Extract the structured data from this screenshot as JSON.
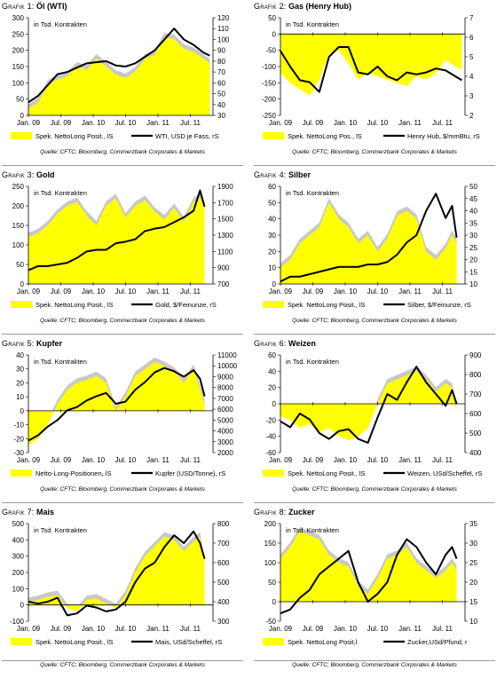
{
  "colors": {
    "position_fill": "#ffff00",
    "position_band": "#c8c8c8",
    "price_line": "#000000",
    "zero_line": "#000000"
  },
  "chart_data": [
    {
      "type": "area",
      "grafik_label": "Grafik 1:",
      "commodity": "Öl (WTI)",
      "note": "in Tsd. Kontrakten",
      "x_ticks": [
        "Jan. 09",
        "Jul. 09",
        "Jan. 10",
        "Jul. 10",
        "Jan. 11",
        "Jul. 11"
      ],
      "left_axis": {
        "ticks": [
          0,
          50,
          100,
          150,
          200,
          250,
          300
        ],
        "range": [
          0,
          300
        ]
      },
      "right_axis": {
        "ticks": [
          30,
          40,
          50,
          60,
          70,
          80,
          90,
          100,
          110,
          120
        ],
        "range": [
          30,
          120
        ]
      },
      "x": [
        2009.0,
        2009.15,
        2009.3,
        2009.45,
        2009.6,
        2009.75,
        2009.9,
        2010.05,
        2010.2,
        2010.35,
        2010.5,
        2010.65,
        2010.8,
        2010.95,
        2011.1,
        2011.25,
        2011.4,
        2011.55,
        2011.7,
        2011.8
      ],
      "series": [
        {
          "name": "Spek. NettoLong Posit., lS",
          "axis": "left",
          "values": [
            20,
            40,
            95,
            110,
            120,
            150,
            140,
            175,
            150,
            125,
            115,
            135,
            175,
            185,
            240,
            235,
            205,
            195,
            175,
            160
          ]
        },
        {
          "name": "WTI, USD je Fass, rS",
          "axis": "right",
          "values": [
            42,
            48,
            58,
            68,
            70,
            74,
            78,
            79,
            80,
            76,
            75,
            78,
            84,
            90,
            100,
            110,
            100,
            95,
            88,
            85
          ]
        }
      ],
      "legend": [
        "Spek. NettoLong Posit., lS",
        "WTI, USD je Fass, rS"
      ],
      "source": "Quelle: CFTC; Bloomberg, Commerzbank Corporates & Markets"
    },
    {
      "type": "area",
      "grafik_label": "Grafik 2:",
      "commodity": "Gas (Henry Hub)",
      "note": "in Tsd. Kontrakten",
      "x_ticks": [
        "Jan. 09",
        "Jul. 09",
        "Jan. 10",
        "Jul. 10",
        "Jan. 11",
        "Jul. 11"
      ],
      "left_axis": {
        "ticks": [
          -250,
          -200,
          -150,
          -100,
          -50,
          0,
          50
        ],
        "range": [
          -250,
          50
        ]
      },
      "right_axis": {
        "ticks": [
          2,
          3,
          4,
          5,
          6,
          7
        ],
        "range": [
          2,
          7
        ]
      },
      "x": [
        2009.0,
        2009.15,
        2009.3,
        2009.45,
        2009.6,
        2009.75,
        2009.9,
        2010.05,
        2010.2,
        2010.35,
        2010.5,
        2010.65,
        2010.8,
        2010.95,
        2011.1,
        2011.25,
        2011.4,
        2011.55,
        2011.7,
        2011.8
      ],
      "series": [
        {
          "name": "Spek. NettoLong Pos., lS",
          "axis": "left",
          "values": [
            -120,
            -150,
            -170,
            -190,
            -140,
            -60,
            -50,
            -90,
            -140,
            -120,
            -130,
            -140,
            -150,
            -160,
            -130,
            -140,
            -120,
            -80,
            -100,
            -110
          ]
        },
        {
          "name": "Henry Hub, $/mmBtu, rS",
          "axis": "right",
          "values": [
            5.3,
            4.5,
            3.8,
            3.7,
            3.2,
            5.0,
            5.5,
            5.5,
            4.2,
            4.1,
            4.5,
            4.0,
            3.8,
            4.2,
            4.1,
            4.2,
            4.4,
            4.3,
            4.0,
            3.8
          ]
        }
      ],
      "legend": [
        "Spek. NettoLong Pos., lS",
        "Henry Hub, $/mmBtu, rS"
      ],
      "source": "Quelle: CFTC; Bloomberg, Commerzbank Corporates & Markets"
    },
    {
      "type": "area",
      "grafik_label": "Grafik 3:",
      "commodity": "Gold",
      "note": "in Tsd. Kontrakten",
      "x_ticks": [
        "Jan. 09",
        "Jul. 09",
        "Jan. 10",
        "Jul. 10",
        "Jan. 11",
        "Jul. 11"
      ],
      "left_axis": {
        "ticks": [
          0,
          50,
          100,
          150,
          200,
          250
        ],
        "range": [
          0,
          250
        ]
      },
      "right_axis": {
        "ticks": [
          700,
          900,
          1100,
          1300,
          1500,
          1700,
          1900
        ],
        "range": [
          700,
          1900
        ]
      },
      "x": [
        2009.0,
        2009.15,
        2009.3,
        2009.45,
        2009.6,
        2009.75,
        2009.9,
        2010.05,
        2010.2,
        2010.35,
        2010.5,
        2010.65,
        2010.8,
        2010.95,
        2011.1,
        2011.25,
        2011.4,
        2011.55,
        2011.65,
        2011.72
      ],
      "series": [
        {
          "name": "Spek. NettoLong Posit., lS",
          "axis": "left",
          "values": [
            120,
            130,
            150,
            180,
            200,
            210,
            175,
            150,
            200,
            220,
            170,
            200,
            215,
            185,
            165,
            195,
            160,
            210,
            220,
            195
          ]
        },
        {
          "name": "Gold, $/Feinunze, rS",
          "axis": "right",
          "values": [
            870,
            920,
            920,
            940,
            960,
            1020,
            1100,
            1120,
            1120,
            1200,
            1220,
            1250,
            1350,
            1380,
            1400,
            1460,
            1520,
            1600,
            1850,
            1650
          ]
        }
      ],
      "legend": [
        "Spek. NettoLong Posit., lS",
        "Gold, $/Feinunze, rS"
      ],
      "source": "Quelle: CFTC; Bloomberg, Commerzbank Corporates & Markets"
    },
    {
      "type": "area",
      "grafik_label": "Grafik 4:",
      "commodity": "Silber",
      "note": "in Tsd. Kontrakten",
      "x_ticks": [
        "Jan. 09",
        "Jul. 09",
        "Jan. 10",
        "Jul. 10",
        "Jan. 11",
        "Jul. 11"
      ],
      "left_axis": {
        "ticks": [
          0,
          10,
          20,
          30,
          40,
          50,
          60
        ],
        "range": [
          0,
          60
        ]
      },
      "right_axis": {
        "ticks": [
          10,
          15,
          20,
          25,
          30,
          35,
          40,
          45,
          50
        ],
        "range": [
          10,
          50
        ]
      },
      "x": [
        2009.0,
        2009.15,
        2009.3,
        2009.45,
        2009.6,
        2009.75,
        2009.9,
        2010.05,
        2010.2,
        2010.35,
        2010.5,
        2010.65,
        2010.8,
        2010.95,
        2011.1,
        2011.25,
        2011.4,
        2011.55,
        2011.65,
        2011.72
      ],
      "series": [
        {
          "name": "Spek. NettoLong Posit., lS",
          "axis": "left",
          "values": [
            10,
            15,
            25,
            30,
            35,
            50,
            40,
            35,
            25,
            30,
            20,
            28,
            42,
            45,
            40,
            20,
            15,
            22,
            30,
            25
          ]
        },
        {
          "name": "Silber, $/Feinunze, rS",
          "axis": "right",
          "values": [
            11,
            13,
            13,
            14,
            15,
            16,
            17,
            17,
            17,
            18,
            18,
            19,
            22,
            27,
            30,
            40,
            47,
            37,
            42,
            29
          ]
        }
      ],
      "legend": [
        "Spek. NettoLong Posit., lS",
        "Silber, $/Feinunze, rS"
      ],
      "source": "Quelle: CFTC; Bloomberg, Commerzbank Corporates & Markets"
    },
    {
      "type": "area",
      "grafik_label": "Grafik 5:",
      "commodity": "Kupfer",
      "note": "in Tsd. Kontrakten",
      "x_ticks": [
        "Jan. 09",
        "Jul. 09",
        "Jan. 10",
        "Jul. 10",
        "Jan. 11",
        "Jul. 11"
      ],
      "left_axis": {
        "ticks": [
          -30,
          -20,
          -10,
          0,
          10,
          20,
          30,
          40
        ],
        "range": [
          -30,
          40
        ]
      },
      "right_axis": {
        "ticks": [
          2000,
          3000,
          4000,
          5000,
          6000,
          7000,
          8000,
          9000,
          10000,
          11000
        ],
        "range": [
          2000,
          11000
        ]
      },
      "x": [
        2009.0,
        2009.15,
        2009.3,
        2009.45,
        2009.6,
        2009.75,
        2009.9,
        2010.05,
        2010.2,
        2010.35,
        2010.5,
        2010.65,
        2010.8,
        2010.95,
        2011.1,
        2011.25,
        2011.4,
        2011.55,
        2011.65,
        2011.72
      ],
      "series": [
        {
          "name": "Netto-Long-Positionen, lS",
          "axis": "left",
          "values": [
            -25,
            -20,
            -10,
            5,
            15,
            20,
            22,
            25,
            20,
            0,
            10,
            25,
            30,
            35,
            32,
            28,
            20,
            30,
            15,
            5
          ]
        },
        {
          "name": "Kupfer (USD/Tonne), rS",
          "axis": "right",
          "values": [
            3100,
            3600,
            4400,
            5000,
            5900,
            6200,
            6800,
            7200,
            7500,
            6500,
            6700,
            7800,
            8500,
            9400,
            9800,
            9500,
            9000,
            9600,
            8800,
            7200
          ]
        }
      ],
      "legend": [
        "Netto-Long-Positionen, lS",
        "Kupfer (USD/Tonne), rS"
      ],
      "source": "Quelle: CFTC; Bloomberg, Commerzbank Corporates & Markets"
    },
    {
      "type": "area",
      "grafik_label": "Grafik 6:",
      "commodity": "Weizen",
      "note": "in Tsd. Kontrakten",
      "x_ticks": [
        "Jan. 09",
        "Jul. 09",
        "Jan. 10",
        "Jul. 10",
        "Jan. 11",
        "Jul. 11"
      ],
      "left_axis": {
        "ticks": [
          -60,
          -40,
          -20,
          0,
          20,
          40,
          60
        ],
        "range": [
          -60,
          60
        ]
      },
      "right_axis": {
        "ticks": [
          400,
          500,
          600,
          700,
          800,
          900
        ],
        "range": [
          400,
          900
        ]
      },
      "x": [
        2009.0,
        2009.15,
        2009.3,
        2009.45,
        2009.6,
        2009.75,
        2009.9,
        2010.05,
        2010.2,
        2010.35,
        2010.5,
        2010.65,
        2010.8,
        2010.95,
        2011.1,
        2011.25,
        2011.4,
        2011.55,
        2011.65,
        2011.72
      ],
      "series": [
        {
          "name": "Spek. NettoLong Posit., lS",
          "axis": "left",
          "values": [
            -15,
            -20,
            -30,
            -25,
            -35,
            -30,
            -40,
            -45,
            -40,
            -30,
            0,
            25,
            30,
            35,
            40,
            30,
            15,
            25,
            20,
            -10
          ]
        },
        {
          "name": "Weizen, USd/Scheffel, rS",
          "axis": "right",
          "values": [
            560,
            530,
            600,
            570,
            500,
            470,
            510,
            520,
            470,
            450,
            580,
            700,
            670,
            760,
            840,
            760,
            700,
            640,
            720,
            650
          ]
        }
      ],
      "legend": [
        "Spek. NettoLong Posit., lS",
        "Weizen, USd/Scheffel, rS"
      ],
      "source": "Quelle: CFTC; Bloomberg, Commerzbank Corporates & Markets"
    },
    {
      "type": "area",
      "grafik_label": "Grafik 7:",
      "commodity": "Mais",
      "note": "in Tsd. Kontrakten",
      "x_ticks": [
        "Jan. 09",
        "Jul. 09",
        "Jan. 10",
        "Jul. 10",
        "Jan. 11",
        "Jul. 11"
      ],
      "left_axis": {
        "ticks": [
          -100,
          0,
          100,
          200,
          300,
          400,
          500
        ],
        "range": [
          -100,
          500
        ]
      },
      "right_axis": {
        "ticks": [
          300,
          400,
          500,
          600,
          700,
          800
        ],
        "range": [
          300,
          800
        ]
      },
      "x": [
        2009.0,
        2009.15,
        2009.3,
        2009.45,
        2009.6,
        2009.75,
        2009.9,
        2010.05,
        2010.2,
        2010.35,
        2010.5,
        2010.65,
        2010.8,
        2010.95,
        2011.1,
        2011.25,
        2011.4,
        2011.55,
        2011.65,
        2011.72
      ],
      "series": [
        {
          "name": "Spek. NettoLong Posit., lS",
          "axis": "left",
          "values": [
            20,
            30,
            50,
            60,
            -20,
            -40,
            30,
            40,
            10,
            -20,
            60,
            200,
            300,
            360,
            420,
            400,
            330,
            390,
            420,
            250
          ]
        },
        {
          "name": "Mais, USd/Scheffel, rS",
          "axis": "right",
          "values": [
            400,
            390,
            400,
            420,
            330,
            340,
            380,
            370,
            350,
            360,
            400,
            500,
            570,
            600,
            680,
            740,
            700,
            760,
            700,
            620
          ]
        }
      ],
      "legend": [
        "Spek. NettoLong Posit., lS",
        "Mais, USd/Scheffel, rS"
      ],
      "source": "Quelle: CFTC; Bloomberg, Commerzbank Corporates & Markets"
    },
    {
      "type": "area",
      "grafik_label": "Grafik 8:",
      "commodity": "Zucker",
      "note": "in Tsd. Kontrakten",
      "x_ticks": [
        "Jan. 09",
        "Jul. 09",
        "Jan. 10",
        "Jul. 10",
        "Jan. 11",
        "Jul. 11"
      ],
      "left_axis": {
        "ticks": [
          -50,
          0,
          50,
          100,
          150,
          200
        ],
        "range": [
          -50,
          200
        ]
      },
      "right_axis": {
        "ticks": [
          10,
          15,
          20,
          25,
          30,
          35
        ],
        "range": [
          10,
          35
        ]
      },
      "x": [
        2009.0,
        2009.15,
        2009.3,
        2009.45,
        2009.6,
        2009.75,
        2009.9,
        2010.05,
        2010.2,
        2010.35,
        2010.5,
        2010.65,
        2010.8,
        2010.95,
        2011.1,
        2011.25,
        2011.4,
        2011.55,
        2011.65,
        2011.72
      ],
      "series": [
        {
          "name": "Spek. NettoLong Posit,l",
          "axis": "left",
          "values": [
            110,
            140,
            180,
            170,
            160,
            120,
            100,
            90,
            40,
            20,
            60,
            110,
            120,
            140,
            100,
            80,
            60,
            80,
            100,
            80
          ]
        },
        {
          "name": "Zucker,USd/Pfund, r",
          "axis": "right",
          "values": [
            12,
            13,
            16,
            18,
            22,
            24,
            26,
            28,
            20,
            15,
            17,
            20,
            27,
            31,
            29,
            25,
            22,
            27,
            29,
            26
          ]
        }
      ],
      "legend": [
        "Spek. NettoLong Posit,l",
        "Zucker,USd/Pfund, r"
      ],
      "source": "Quelle: CFTC; Bloomberg, Commerzbank Corporates & Markets"
    }
  ]
}
